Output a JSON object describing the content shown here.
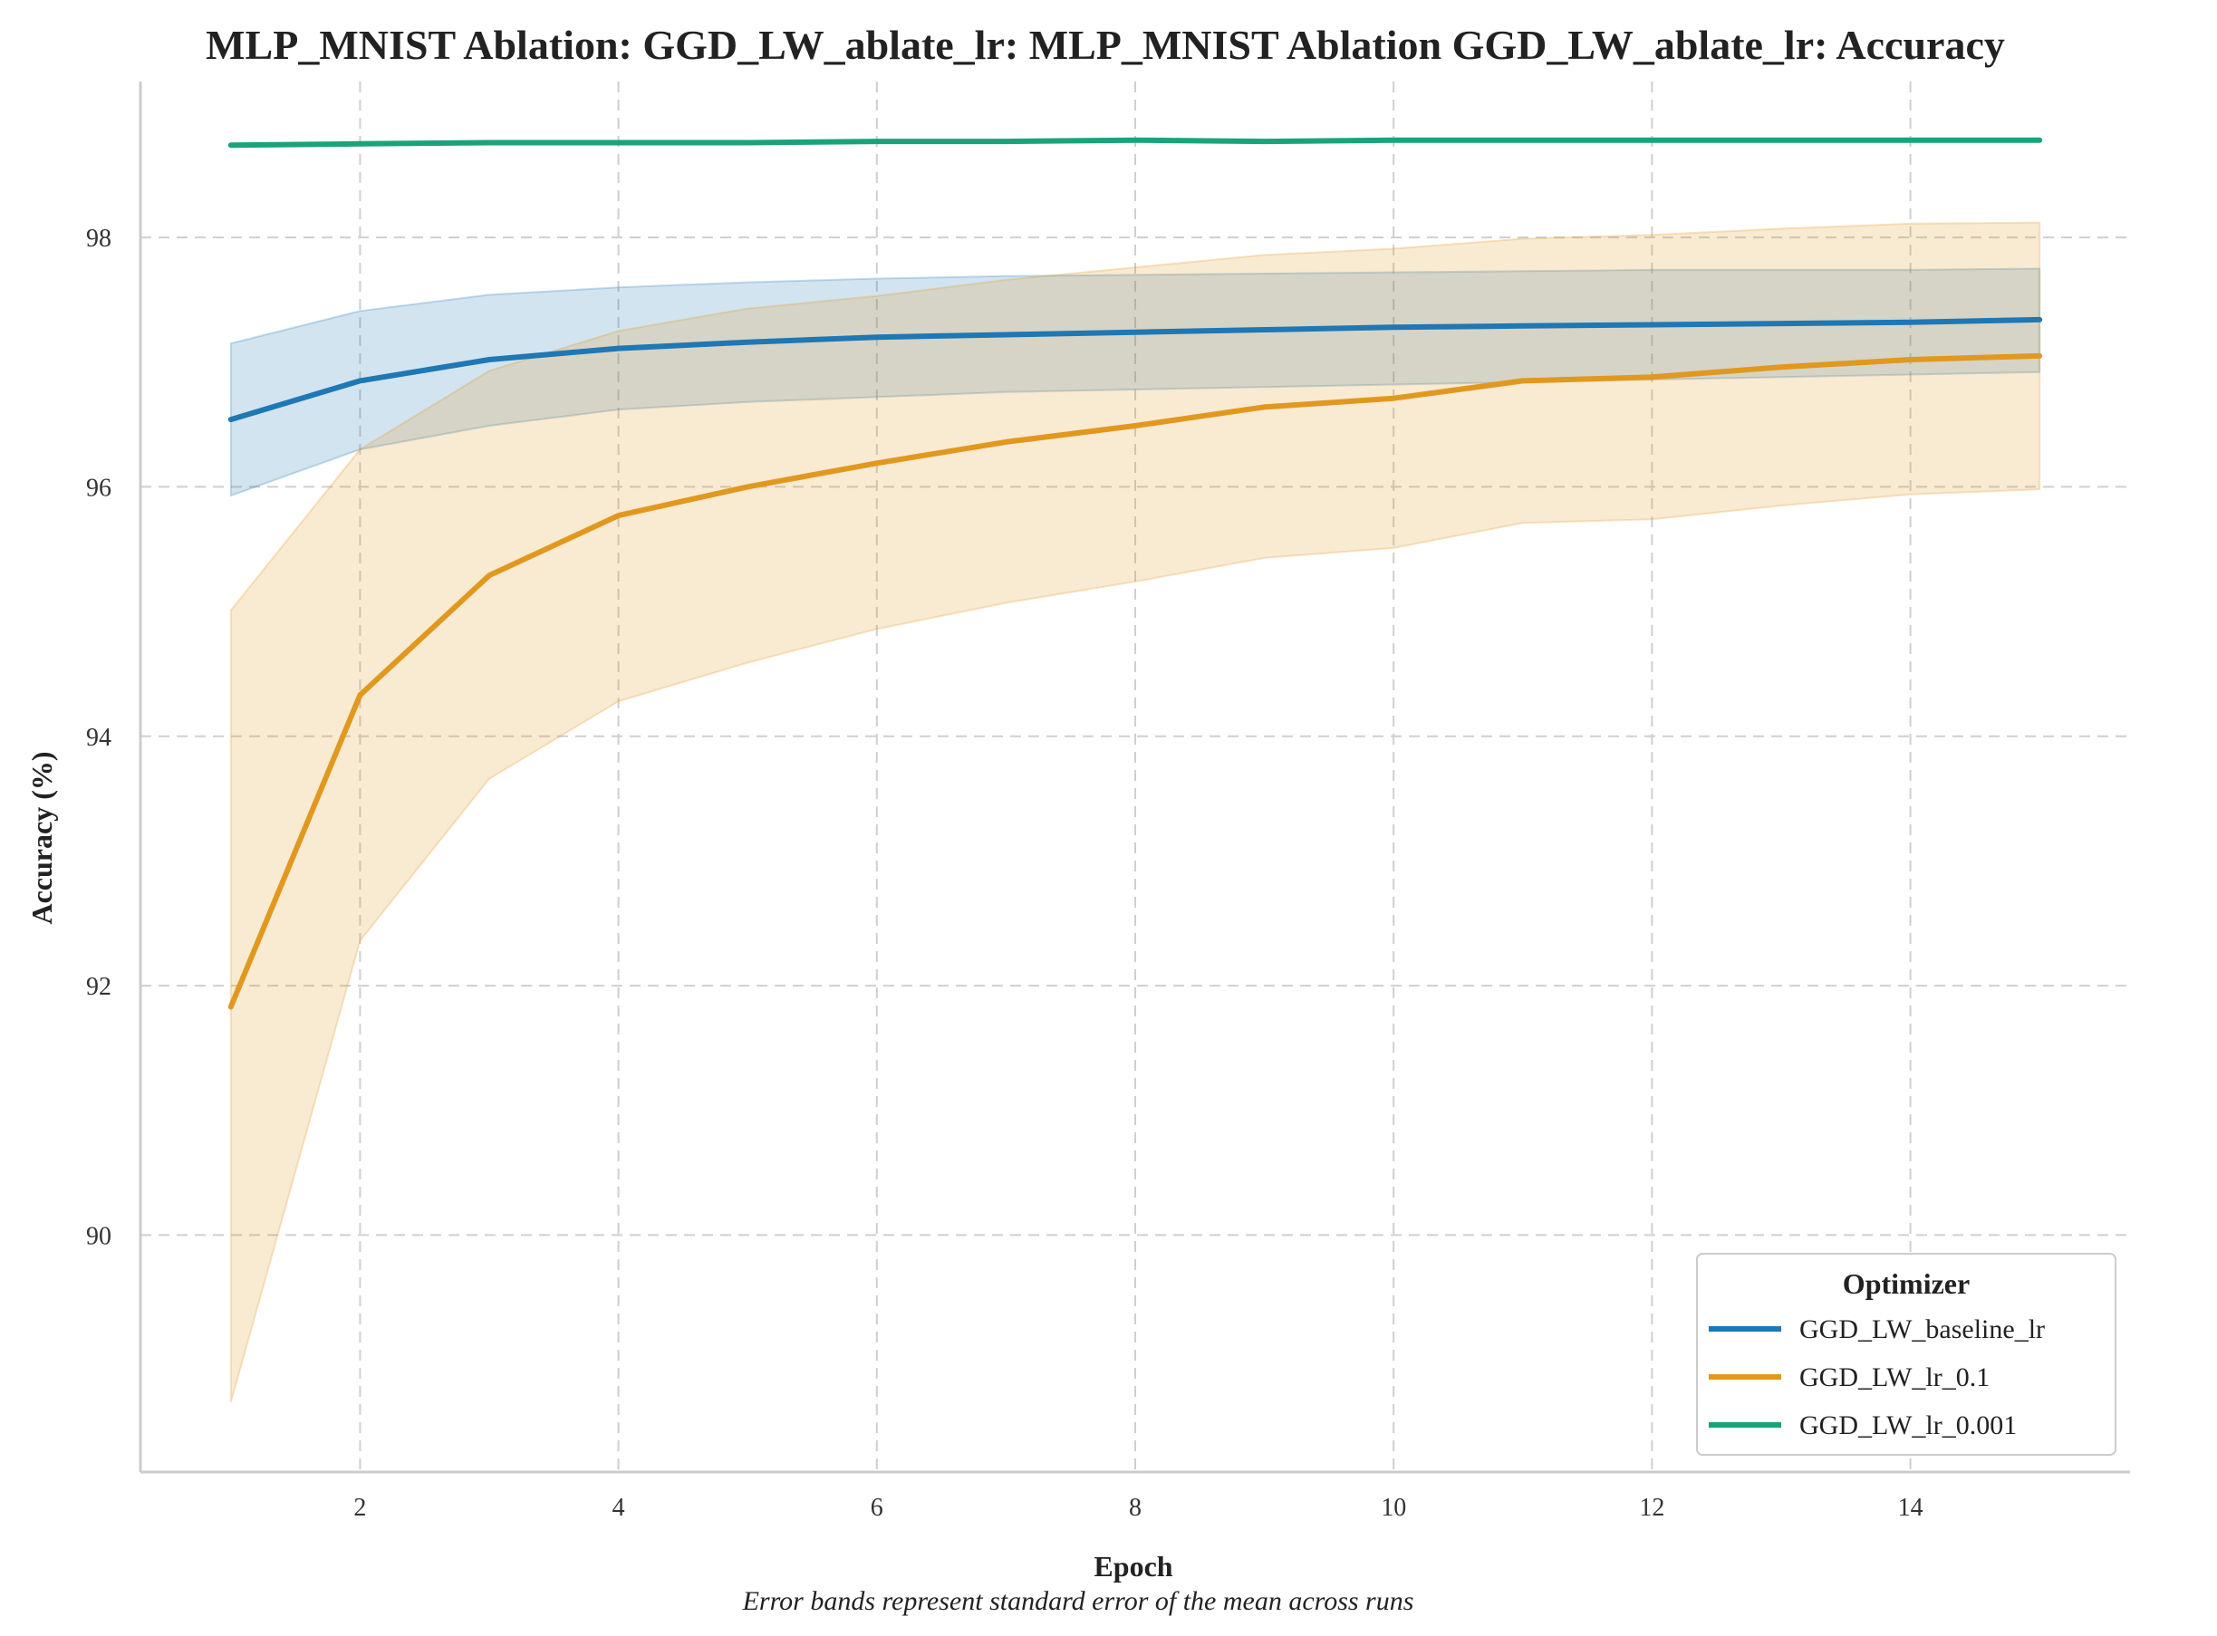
{
  "chart_data": {
    "type": "line",
    "title": "MLP_MNIST Ablation: GGD_LW_ablate_lr: MLP_MNIST Ablation GGD_LW_ablate_lr: Accuracy",
    "xlabel": "Epoch",
    "ylabel": "Accuracy (%)",
    "caption": "Error bands represent standard error of the mean across runs",
    "x": [
      1,
      2,
      3,
      4,
      5,
      6,
      7,
      8,
      9,
      10,
      11,
      12,
      13,
      14,
      15
    ],
    "xlim": [
      0.3,
      15.7
    ],
    "ylim": [
      88.1,
      99.25
    ],
    "xticks": [
      2,
      4,
      6,
      8,
      10,
      12,
      14
    ],
    "yticks": [
      90,
      92,
      94,
      96,
      98
    ],
    "grid": true,
    "legend": {
      "title": "Optimizer",
      "placement": "lower-right"
    },
    "series": [
      {
        "name": "GGD_LW_baseline_lr",
        "color": "#1f77b4",
        "values": [
          96.54,
          96.85,
          97.02,
          97.11,
          97.16,
          97.2,
          97.22,
          97.24,
          97.26,
          97.28,
          97.29,
          97.3,
          97.31,
          97.32,
          97.34
        ],
        "lower": [
          95.93,
          96.3,
          96.49,
          96.62,
          96.68,
          96.72,
          96.76,
          96.78,
          96.8,
          96.82,
          96.84,
          96.86,
          96.88,
          96.9,
          96.92
        ],
        "upper": [
          97.15,
          97.41,
          97.54,
          97.6,
          97.64,
          97.67,
          97.69,
          97.7,
          97.71,
          97.72,
          97.73,
          97.74,
          97.74,
          97.74,
          97.75
        ]
      },
      {
        "name": "GGD_LW_lr_0.1",
        "color": "#e1981f",
        "values": [
          91.83,
          94.33,
          95.29,
          95.77,
          96.0,
          96.19,
          96.36,
          96.49,
          96.64,
          96.71,
          96.85,
          96.88,
          96.96,
          97.02,
          97.05
        ],
        "lower": [
          88.66,
          92.36,
          93.66,
          94.28,
          94.59,
          94.86,
          95.07,
          95.24,
          95.43,
          95.51,
          95.71,
          95.74,
          95.85,
          95.94,
          95.98
        ],
        "upper": [
          95.01,
          96.3,
          96.93,
          97.25,
          97.43,
          97.53,
          97.66,
          97.76,
          97.86,
          97.91,
          97.99,
          98.02,
          98.07,
          98.11,
          98.12
        ]
      },
      {
        "name": "GGD_LW_lr_0.001",
        "color": "#1aa37a",
        "values": [
          98.74,
          98.75,
          98.76,
          98.76,
          98.76,
          98.77,
          98.77,
          98.78,
          98.77,
          98.78,
          98.78,
          98.78,
          98.78,
          98.78,
          98.78
        ],
        "lower": [
          98.74,
          98.75,
          98.76,
          98.76,
          98.76,
          98.77,
          98.77,
          98.78,
          98.77,
          98.78,
          98.78,
          98.78,
          98.78,
          98.78,
          98.78
        ],
        "upper": [
          98.74,
          98.75,
          98.76,
          98.76,
          98.76,
          98.77,
          98.77,
          98.78,
          98.77,
          98.78,
          98.78,
          98.78,
          98.78,
          98.78,
          98.78
        ]
      }
    ]
  }
}
